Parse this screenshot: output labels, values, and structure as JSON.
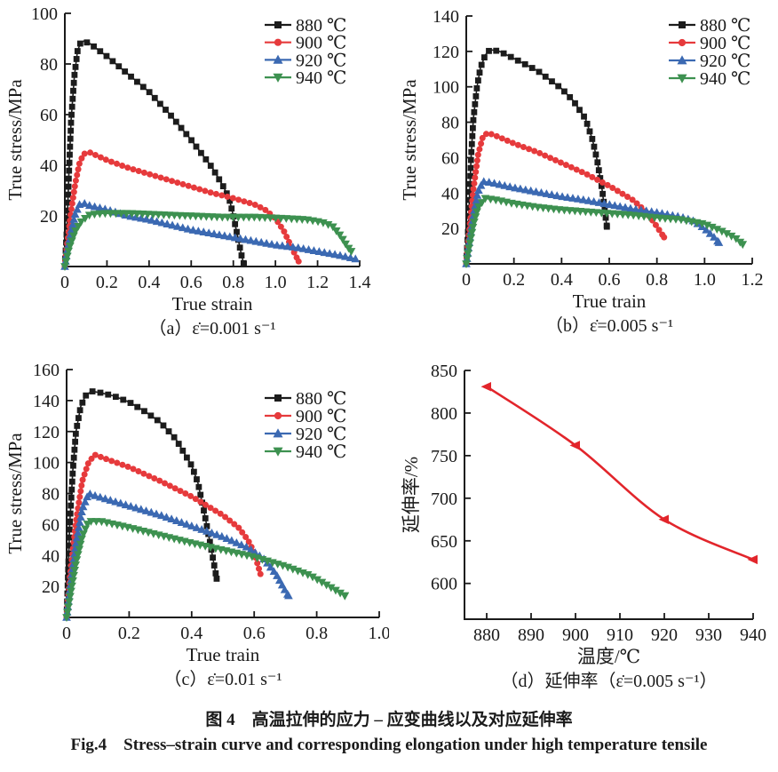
{
  "figure": {
    "caption_zh": "图 4　高温拉伸的应力 – 应变曲线以及对应延伸率",
    "caption_en": "Fig.4　Stress–strain curve and corresponding elongation under high temperature tensile"
  },
  "colors": {
    "black": "#1c1c1c",
    "red": "#e63a3c",
    "blue": "#3b69b2",
    "green": "#3d9150",
    "elongation_red": "#e2252b",
    "text": "#1a1a1a"
  },
  "chart_data": [
    {
      "id": "a",
      "type": "line",
      "caption": "（a）ε̇=0.001 s⁻¹",
      "xlabel": "True strain",
      "ylabel": "True stress/MPa",
      "xlim": [
        0,
        1.4
      ],
      "ylim": [
        0,
        100
      ],
      "xtick_vals": [
        0,
        0.2,
        0.4,
        0.6,
        0.8,
        1.0,
        1.2,
        1.4
      ],
      "xtick_labels": [
        "0",
        "0.2",
        "0.4",
        "0.6",
        "0.8",
        "1.0",
        "1.2",
        "1.4"
      ],
      "ytick_vals": [
        20,
        40,
        60,
        80,
        100
      ],
      "ytick_labels": [
        "20",
        "40",
        "60",
        "80",
        "100"
      ],
      "legend": true,
      "series": [
        {
          "name": "880 ℃",
          "marker": "square",
          "color_key": "black",
          "points": [
            [
              0,
              0
            ],
            [
              0.01,
              15
            ],
            [
              0.02,
              38
            ],
            [
              0.03,
              58
            ],
            [
              0.045,
              75
            ],
            [
              0.06,
              85
            ],
            [
              0.075,
              88.5
            ],
            [
              0.09,
              89
            ],
            [
              0.12,
              88
            ],
            [
              0.2,
              83
            ],
            [
              0.3,
              76
            ],
            [
              0.4,
              69
            ],
            [
              0.5,
              60
            ],
            [
              0.6,
              50
            ],
            [
              0.7,
              39
            ],
            [
              0.75,
              32
            ],
            [
              0.78,
              27
            ],
            [
              0.8,
              20
            ],
            [
              0.82,
              12
            ],
            [
              0.84,
              4
            ],
            [
              0.85,
              1
            ]
          ]
        },
        {
          "name": "900 ℃",
          "marker": "circle",
          "color_key": "red",
          "points": [
            [
              0,
              0
            ],
            [
              0.01,
              8
            ],
            [
              0.03,
              22
            ],
            [
              0.05,
              33
            ],
            [
              0.07,
              41
            ],
            [
              0.09,
              44.5
            ],
            [
              0.12,
              45
            ],
            [
              0.16,
              43.5
            ],
            [
              0.2,
              42
            ],
            [
              0.3,
              39
            ],
            [
              0.4,
              36.5
            ],
            [
              0.5,
              34
            ],
            [
              0.6,
              31.5
            ],
            [
              0.7,
              29
            ],
            [
              0.8,
              27
            ],
            [
              0.9,
              24.5
            ],
            [
              0.95,
              22.5
            ],
            [
              1.0,
              19
            ],
            [
              1.04,
              14
            ],
            [
              1.08,
              7
            ],
            [
              1.11,
              2
            ]
          ]
        },
        {
          "name": "920 ℃",
          "marker": "triangle-up",
          "color_key": "blue",
          "points": [
            [
              0,
              0
            ],
            [
              0.01,
              6
            ],
            [
              0.03,
              14
            ],
            [
              0.05,
              21
            ],
            [
              0.07,
              24.5
            ],
            [
              0.09,
              25
            ],
            [
              0.12,
              24
            ],
            [
              0.2,
              22.5
            ],
            [
              0.3,
              20
            ],
            [
              0.4,
              18.5
            ],
            [
              0.5,
              16.5
            ],
            [
              0.6,
              14.5
            ],
            [
              0.7,
              13
            ],
            [
              0.8,
              11.5
            ],
            [
              0.9,
              10
            ],
            [
              1.0,
              8.5
            ],
            [
              1.1,
              7.5
            ],
            [
              1.2,
              6
            ],
            [
              1.3,
              4.5
            ],
            [
              1.38,
              3
            ]
          ]
        },
        {
          "name": "940 ℃",
          "marker": "triangle-down",
          "color_key": "green",
          "points": [
            [
              0,
              0
            ],
            [
              0.02,
              7
            ],
            [
              0.05,
              14
            ],
            [
              0.08,
              18
            ],
            [
              0.12,
              20.5
            ],
            [
              0.18,
              21
            ],
            [
              0.3,
              21
            ],
            [
              0.45,
              20.5
            ],
            [
              0.6,
              20
            ],
            [
              0.75,
              19.5
            ],
            [
              0.9,
              19.5
            ],
            [
              1.05,
              19
            ],
            [
              1.15,
              18.5
            ],
            [
              1.22,
              17.5
            ],
            [
              1.27,
              16
            ],
            [
              1.31,
              12
            ],
            [
              1.34,
              8
            ],
            [
              1.36,
              6
            ]
          ]
        }
      ]
    },
    {
      "id": "b",
      "type": "line",
      "caption": "（b）ε̇=0.005 s⁻¹",
      "xlabel": "True train",
      "ylabel": "True stress/MPa",
      "xlim": [
        0,
        1.2
      ],
      "ylim": [
        0,
        140
      ],
      "xtick_vals": [
        0,
        0.2,
        0.4,
        0.6,
        0.8,
        1.0,
        1.2
      ],
      "xtick_labels": [
        "0",
        "0.2",
        "0.4",
        "0.6",
        "0.8",
        "1.0",
        "1.2"
      ],
      "ytick_vals": [
        20,
        40,
        60,
        80,
        100,
        120,
        140
      ],
      "ytick_labels": [
        "20",
        "40",
        "60",
        "80",
        "100",
        "120",
        "140"
      ],
      "legend": true,
      "series": [
        {
          "name": "880 ℃",
          "marker": "square",
          "color_key": "black",
          "points": [
            [
              0,
              0
            ],
            [
              0.01,
              25
            ],
            [
              0.02,
              60
            ],
            [
              0.03,
              82
            ],
            [
              0.045,
              100
            ],
            [
              0.06,
              111
            ],
            [
              0.08,
              118
            ],
            [
              0.1,
              121
            ],
            [
              0.14,
              120
            ],
            [
              0.2,
              116
            ],
            [
              0.3,
              109
            ],
            [
              0.4,
              99
            ],
            [
              0.45,
              92
            ],
            [
              0.5,
              82
            ],
            [
              0.53,
              70
            ],
            [
              0.55,
              58
            ],
            [
              0.57,
              42
            ],
            [
              0.59,
              21
            ]
          ]
        },
        {
          "name": "900 ℃",
          "marker": "circle",
          "color_key": "red",
          "points": [
            [
              0,
              0
            ],
            [
              0.01,
              15
            ],
            [
              0.03,
              42
            ],
            [
              0.05,
              62
            ],
            [
              0.07,
              72
            ],
            [
              0.09,
              74
            ],
            [
              0.13,
              72
            ],
            [
              0.2,
              68
            ],
            [
              0.3,
              63
            ],
            [
              0.4,
              57
            ],
            [
              0.5,
              51
            ],
            [
              0.6,
              44
            ],
            [
              0.7,
              36
            ],
            [
              0.75,
              30
            ],
            [
              0.79,
              23
            ],
            [
              0.83,
              15
            ]
          ]
        },
        {
          "name": "920 ℃",
          "marker": "triangle-up",
          "color_key": "blue",
          "points": [
            [
              0,
              0
            ],
            [
              0.01,
              10
            ],
            [
              0.03,
              28
            ],
            [
              0.05,
              41
            ],
            [
              0.07,
              46.5
            ],
            [
              0.1,
              46
            ],
            [
              0.2,
              43
            ],
            [
              0.3,
              40.5
            ],
            [
              0.4,
              38
            ],
            [
              0.5,
              36
            ],
            [
              0.6,
              33.5
            ],
            [
              0.7,
              31
            ],
            [
              0.8,
              29
            ],
            [
              0.9,
              26.5
            ],
            [
              0.95,
              24.5
            ],
            [
              1.0,
              20
            ],
            [
              1.04,
              15
            ],
            [
              1.06,
              12
            ]
          ]
        },
        {
          "name": "940 ℃",
          "marker": "triangle-down",
          "color_key": "green",
          "points": [
            [
              0,
              0
            ],
            [
              0.01,
              8
            ],
            [
              0.03,
              22
            ],
            [
              0.05,
              32
            ],
            [
              0.08,
              37
            ],
            [
              0.13,
              36
            ],
            [
              0.2,
              34
            ],
            [
              0.3,
              32
            ],
            [
              0.4,
              30.5
            ],
            [
              0.5,
              29.5
            ],
            [
              0.6,
              28.5
            ],
            [
              0.7,
              27.5
            ],
            [
              0.8,
              26
            ],
            [
              0.9,
              25
            ],
            [
              1.0,
              22.5
            ],
            [
              1.08,
              18
            ],
            [
              1.13,
              14.5
            ],
            [
              1.16,
              11
            ]
          ]
        }
      ]
    },
    {
      "id": "c",
      "type": "line",
      "caption": "（c）ε̇=0.01 s⁻¹",
      "xlabel": "True train",
      "ylabel": "True stress/MPa",
      "xlim": [
        0,
        1.0
      ],
      "ylim": [
        0,
        160
      ],
      "xtick_vals": [
        0,
        0.2,
        0.4,
        0.6,
        0.8,
        1.0
      ],
      "xtick_labels": [
        "0",
        "0.2",
        "0.4",
        "0.6",
        "0.8",
        "1.0"
      ],
      "ytick_vals": [
        20,
        40,
        60,
        80,
        100,
        120,
        140,
        160
      ],
      "ytick_labels": [
        "20",
        "40",
        "60",
        "80",
        "100",
        "120",
        "140",
        "160"
      ],
      "legend": true,
      "series": [
        {
          "name": "880 ℃",
          "marker": "square",
          "color_key": "black",
          "points": [
            [
              0,
              0
            ],
            [
              0.005,
              30
            ],
            [
              0.01,
              60
            ],
            [
              0.02,
              95
            ],
            [
              0.03,
              120
            ],
            [
              0.045,
              136
            ],
            [
              0.06,
              143
            ],
            [
              0.08,
              146
            ],
            [
              0.11,
              145
            ],
            [
              0.15,
              143
            ],
            [
              0.2,
              139
            ],
            [
              0.25,
              133
            ],
            [
              0.3,
              126
            ],
            [
              0.35,
              115
            ],
            [
              0.4,
              98
            ],
            [
              0.42,
              87
            ],
            [
              0.44,
              68
            ],
            [
              0.46,
              47
            ],
            [
              0.48,
              25
            ]
          ]
        },
        {
          "name": "900 ℃",
          "marker": "circle",
          "color_key": "red",
          "points": [
            [
              0,
              0
            ],
            [
              0.01,
              25
            ],
            [
              0.03,
              62
            ],
            [
              0.05,
              88
            ],
            [
              0.07,
              100
            ],
            [
              0.09,
              105
            ],
            [
              0.13,
              102
            ],
            [
              0.2,
              97
            ],
            [
              0.3,
              88
            ],
            [
              0.4,
              78
            ],
            [
              0.5,
              66
            ],
            [
              0.55,
              58
            ],
            [
              0.58,
              50
            ],
            [
              0.6,
              42
            ],
            [
              0.62,
              28
            ]
          ]
        },
        {
          "name": "920 ℃",
          "marker": "triangle-up",
          "color_key": "blue",
          "points": [
            [
              0,
              0
            ],
            [
              0.01,
              18
            ],
            [
              0.03,
              48
            ],
            [
              0.05,
              70
            ],
            [
              0.07,
              80
            ],
            [
              0.1,
              78
            ],
            [
              0.2,
              72
            ],
            [
              0.3,
              66
            ],
            [
              0.4,
              59
            ],
            [
              0.5,
              52
            ],
            [
              0.58,
              45
            ],
            [
              0.63,
              38
            ],
            [
              0.67,
              28
            ],
            [
              0.7,
              17
            ],
            [
              0.71,
              14
            ]
          ]
        },
        {
          "name": "940 ℃",
          "marker": "triangle-down",
          "color_key": "green",
          "points": [
            [
              0,
              0
            ],
            [
              0.01,
              12
            ],
            [
              0.03,
              35
            ],
            [
              0.05,
              52
            ],
            [
              0.07,
              62
            ],
            [
              0.11,
              62
            ],
            [
              0.2,
              58
            ],
            [
              0.3,
              53
            ],
            [
              0.4,
              48
            ],
            [
              0.5,
              43.5
            ],
            [
              0.6,
              39
            ],
            [
              0.7,
              33
            ],
            [
              0.78,
              27
            ],
            [
              0.84,
              20
            ],
            [
              0.89,
              14
            ]
          ]
        }
      ]
    },
    {
      "id": "d",
      "type": "line",
      "caption": "（d）延伸率（ε̇=0.005 s⁻¹）",
      "xlabel": "温度/℃",
      "ylabel": "延伸率/%",
      "xlim": [
        875,
        940
      ],
      "ylim": [
        558,
        850
      ],
      "xtick_vals": [
        880,
        890,
        900,
        910,
        920,
        930,
        940
      ],
      "xtick_labels": [
        "880",
        "890",
        "900",
        "910",
        "920",
        "930",
        "940"
      ],
      "ytick_vals": [
        600,
        650,
        700,
        750,
        800,
        850
      ],
      "ytick_labels": [
        "600",
        "650",
        "700",
        "750",
        "800",
        "850"
      ],
      "legend": false,
      "series": [
        {
          "name": "延伸率",
          "marker": "triangle-left",
          "color_key": "elongation_red",
          "markers_at_points": true,
          "smooth": true,
          "points": [
            [
              880,
              831
            ],
            [
              900,
              762
            ],
            [
              920,
              675
            ],
            [
              940,
              628
            ]
          ]
        }
      ]
    }
  ]
}
